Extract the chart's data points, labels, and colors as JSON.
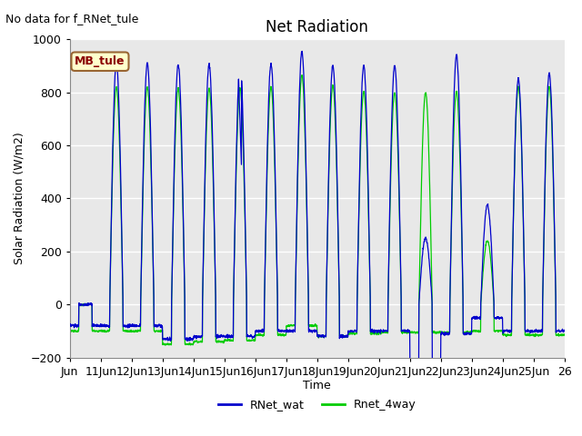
{
  "title": "Net Radiation",
  "ylabel": "Solar Radiation (W/m2)",
  "xlabel": "Time",
  "annotation": "No data for f_RNet_tule",
  "legend_box_label": "MB_tule",
  "ylim": [
    -200,
    1000
  ],
  "xtick_labels": [
    "Jun",
    "11Jun",
    "12Jun",
    "13Jun",
    "14Jun",
    "15Jun",
    "16Jun",
    "17Jun",
    "18Jun",
    "19Jun",
    "20Jun",
    "21Jun",
    "22Jun",
    "23Jun",
    "24Jun",
    "25Jun",
    "26"
  ],
  "line1_color": "#0000CC",
  "line2_color": "#00CC00",
  "line1_label": "RNet_wat",
  "line2_label": "Rnet_4way",
  "background_color": "#E8E8E8",
  "n_days": 16,
  "pts_per_day": 144
}
